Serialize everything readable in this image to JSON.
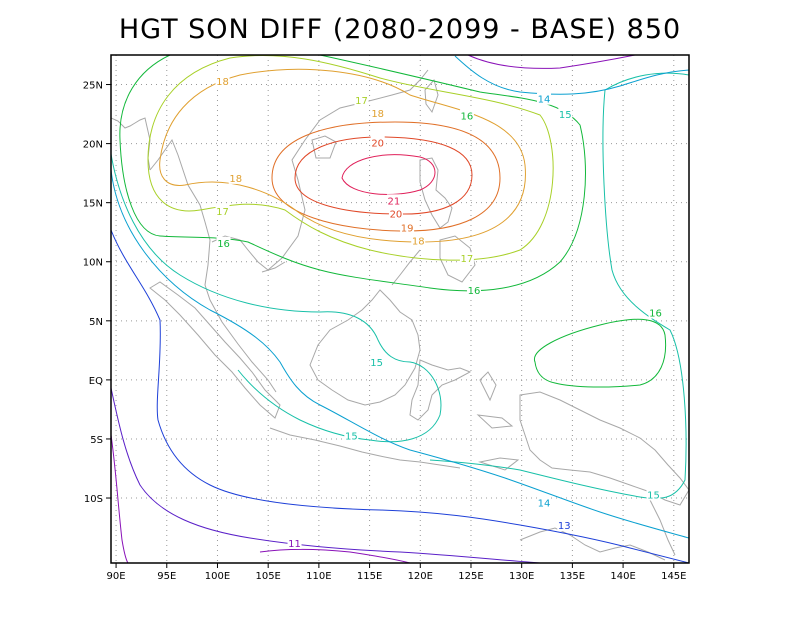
{
  "title": "HGT SON DIFF (2080-2099 - BASE) 850",
  "map": {
    "lon_range": [
      89.5,
      146.5
    ],
    "lat_range": [
      -15.5,
      27.5
    ],
    "x_ticks": [
      {
        "value": 90,
        "label": "90E"
      },
      {
        "value": 95,
        "label": "95E"
      },
      {
        "value": 100,
        "label": "100E"
      },
      {
        "value": 105,
        "label": "105E"
      },
      {
        "value": 110,
        "label": "110E"
      },
      {
        "value": 115,
        "label": "115E"
      },
      {
        "value": 120,
        "label": "120E"
      },
      {
        "value": 125,
        "label": "125E"
      },
      {
        "value": 130,
        "label": "130E"
      },
      {
        "value": 135,
        "label": "135E"
      },
      {
        "value": 140,
        "label": "140E"
      },
      {
        "value": 145,
        "label": "145E"
      }
    ],
    "y_ticks": [
      {
        "value": 25,
        "label": "25N"
      },
      {
        "value": 20,
        "label": "20N"
      },
      {
        "value": 15,
        "label": "15N"
      },
      {
        "value": 10,
        "label": "10N"
      },
      {
        "value": 5,
        "label": "5N"
      },
      {
        "value": 0,
        "label": "EQ"
      },
      {
        "value": -5,
        "label": "5S"
      },
      {
        "value": -10,
        "label": "10S"
      }
    ],
    "grid": true,
    "contour_colors": {
      "11": "#8a12b8",
      "13": "#1e40d8",
      "14": "#0aa0d0",
      "15": "#18c0a8",
      "16": "#12b83a",
      "17": "#a8d028",
      "18": "#e0a030",
      "19": "#e07028",
      "20": "#e04828",
      "21": "#e0205a"
    },
    "contour_labels": [
      {
        "text": "18",
        "lon": 100.5,
        "lat": 25.3,
        "level": "18"
      },
      {
        "text": "17",
        "lon": 114.2,
        "lat": 23.7,
        "level": "17"
      },
      {
        "text": "18",
        "lon": 115.8,
        "lat": 22.6,
        "level": "18"
      },
      {
        "text": "20",
        "lon": 115.8,
        "lat": 20.1,
        "level": "20"
      },
      {
        "text": "16",
        "lon": 124.6,
        "lat": 22.4,
        "level": "16"
      },
      {
        "text": "14",
        "lon": 132.2,
        "lat": 23.8,
        "level": "14"
      },
      {
        "text": "15",
        "lon": 134.3,
        "lat": 22.5,
        "level": "15"
      },
      {
        "text": "18",
        "lon": 101.8,
        "lat": 17.1,
        "level": "18"
      },
      {
        "text": "21",
        "lon": 117.4,
        "lat": 15.2,
        "level": "21"
      },
      {
        "text": "20",
        "lon": 117.6,
        "lat": 14.1,
        "level": "20"
      },
      {
        "text": "17",
        "lon": 100.5,
        "lat": 14.3,
        "level": "17"
      },
      {
        "text": "19",
        "lon": 118.7,
        "lat": 12.9,
        "level": "19"
      },
      {
        "text": "16",
        "lon": 100.6,
        "lat": 11.6,
        "level": "16"
      },
      {
        "text": "18",
        "lon": 119.8,
        "lat": 11.8,
        "level": "18"
      },
      {
        "text": "17",
        "lon": 124.6,
        "lat": 10.3,
        "level": "17"
      },
      {
        "text": "16",
        "lon": 125.3,
        "lat": 7.6,
        "level": "16"
      },
      {
        "text": "16",
        "lon": 143.2,
        "lat": 5.7,
        "level": "16"
      },
      {
        "text": "15",
        "lon": 115.7,
        "lat": 1.5,
        "level": "15"
      },
      {
        "text": "15",
        "lon": 113.2,
        "lat": -4.7,
        "level": "15"
      },
      {
        "text": "15",
        "lon": 143.0,
        "lat": -9.7,
        "level": "15"
      },
      {
        "text": "14",
        "lon": 132.2,
        "lat": -10.4,
        "level": "14"
      },
      {
        "text": "13",
        "lon": 134.2,
        "lat": -12.3,
        "level": "13"
      },
      {
        "text": "11",
        "lon": 107.6,
        "lat": -13.8,
        "level": "11"
      }
    ]
  }
}
